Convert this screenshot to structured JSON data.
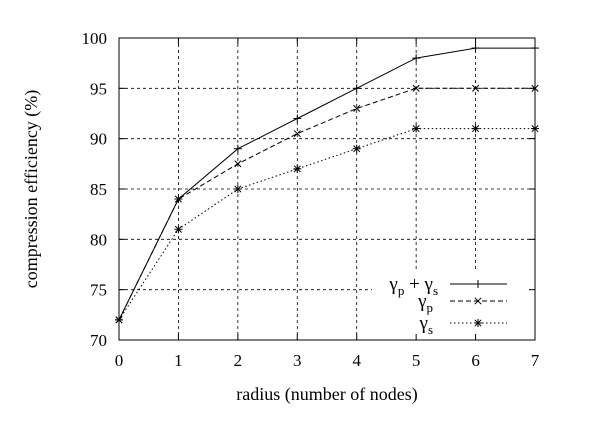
{
  "chart_data": {
    "type": "line",
    "xlabel": "radius (number of nodes)",
    "ylabel": "compression efficiency (%)",
    "xlim": [
      0,
      7
    ],
    "ylim": [
      70,
      100
    ],
    "x_ticks": [
      "0",
      "1",
      "2",
      "3",
      "4",
      "5",
      "6",
      "7"
    ],
    "y_ticks": [
      "70",
      "75",
      "80",
      "85",
      "90",
      "95",
      "100"
    ],
    "grid": true,
    "legend_position": "bottom-right",
    "x": [
      0,
      1,
      2,
      3,
      4,
      5,
      6,
      7
    ],
    "series": [
      {
        "name": "γp + γs",
        "name_parts": {
          "g1": "γ",
          "s1": "p",
          "plus": " + ",
          "g2": "γ",
          "s2": "s"
        },
        "values": [
          72,
          84,
          89,
          92,
          95,
          98,
          99,
          99
        ],
        "marker": "plus",
        "dash": "solid"
      },
      {
        "name": "γp",
        "name_parts": {
          "g1": "γ",
          "s1": "p"
        },
        "values": [
          72,
          84,
          87.5,
          90.5,
          93,
          95,
          95,
          95
        ],
        "marker": "x",
        "dash": "dashed"
      },
      {
        "name": "γs",
        "name_parts": {
          "g1": "γ",
          "s1": "s"
        },
        "values": [
          72,
          81,
          85,
          87,
          89,
          91,
          91,
          91
        ],
        "marker": "star",
        "dash": "dotted"
      }
    ]
  }
}
